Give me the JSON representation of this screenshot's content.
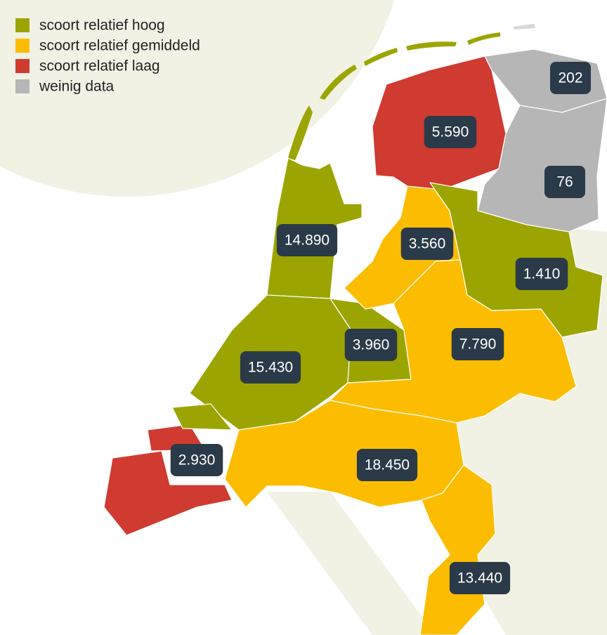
{
  "legend": [
    {
      "label": "scoort relatief hoog",
      "color": "#9ca500"
    },
    {
      "label": "scoort relatief gemiddeld",
      "color": "#fcbd00"
    },
    {
      "label": "scoort relatief laag",
      "color": "#cf3a31"
    },
    {
      "label": "weinig data",
      "color": "#b6b6b6"
    }
  ],
  "regions": [
    {
      "label": "202"
    },
    {
      "label": "5.590"
    },
    {
      "label": "76"
    },
    {
      "label": "14.890"
    },
    {
      "label": "3.560"
    },
    {
      "label": "1.410"
    },
    {
      "label": "3.960"
    },
    {
      "label": "7.790"
    },
    {
      "label": "15.430"
    },
    {
      "label": "2.930"
    },
    {
      "label": "18.450"
    },
    {
      "label": "13.440"
    }
  ]
}
